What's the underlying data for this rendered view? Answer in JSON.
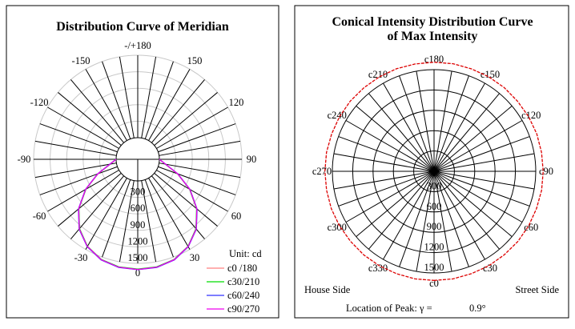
{
  "chart_data": [
    {
      "type": "polar-line",
      "title": "Distribution Curve of  Meridian",
      "unit_label": "Unit: cd",
      "angle_ticks": [
        "-/+180",
        "150",
        "120",
        "90",
        "60",
        "30",
        "0",
        "-30",
        "-60",
        "-90",
        "-120",
        "-150"
      ],
      "angle_tick_values": [
        180,
        150,
        120,
        90,
        60,
        30,
        0,
        -30,
        -60,
        -90,
        -120,
        -150
      ],
      "radial_ticks": [
        300,
        600,
        900,
        1200,
        1500
      ],
      "rlim": [
        0,
        1500
      ],
      "spoke_step_deg": 10,
      "legend_position": "bottom-right",
      "series": [
        {
          "name": "c0 /180",
          "color": "#ff8080",
          "angles": [
            -90,
            -80,
            -70,
            -60,
            -50,
            -40,
            -30,
            -20,
            -10,
            0,
            10,
            20,
            30,
            40,
            50,
            60,
            70,
            80,
            90
          ],
          "values": [
            0,
            120,
            380,
            700,
            1010,
            1260,
            1440,
            1550,
            1600,
            1610,
            1600,
            1550,
            1440,
            1260,
            1010,
            700,
            380,
            120,
            0
          ]
        },
        {
          "name": "c30/210",
          "color": "#00dd00",
          "angles": [
            -90,
            -80,
            -70,
            -60,
            -50,
            -40,
            -30,
            -20,
            -10,
            0,
            10,
            20,
            30,
            40,
            50,
            60,
            70,
            80,
            90
          ],
          "values": [
            0,
            115,
            375,
            695,
            1005,
            1255,
            1435,
            1545,
            1595,
            1605,
            1595,
            1545,
            1435,
            1255,
            1005,
            695,
            375,
            115,
            0
          ]
        },
        {
          "name": "c60/240",
          "color": "#3030ff",
          "angles": [
            -90,
            -80,
            -70,
            -60,
            -50,
            -40,
            -30,
            -20,
            -10,
            0,
            10,
            20,
            30,
            40,
            50,
            60,
            70,
            80,
            90
          ],
          "values": [
            0,
            125,
            385,
            705,
            1015,
            1265,
            1445,
            1555,
            1605,
            1615,
            1605,
            1555,
            1445,
            1265,
            1015,
            705,
            385,
            125,
            0
          ]
        },
        {
          "name": "c90/270",
          "color": "#ee00ee",
          "angles": [
            -90,
            -80,
            -70,
            -60,
            -50,
            -40,
            -30,
            -20,
            -10,
            0,
            10,
            20,
            30,
            40,
            50,
            60,
            70,
            80,
            90
          ],
          "values": [
            0,
            120,
            380,
            700,
            1010,
            1260,
            1440,
            1550,
            1600,
            1612,
            1600,
            1550,
            1440,
            1260,
            1010,
            700,
            380,
            120,
            0
          ]
        }
      ]
    },
    {
      "type": "polar-line",
      "title_line1": "Conical Intensity Distribution Curve",
      "title_line2": "of  Max Intensity",
      "angle_ticks": [
        "c180",
        "c150",
        "c120",
        "c90",
        "c60",
        "c30",
        "c0",
        "c330",
        "c300",
        "c270",
        "c240",
        "c210"
      ],
      "angle_tick_values": [
        180,
        150,
        120,
        90,
        60,
        30,
        0,
        330,
        300,
        270,
        240,
        210
      ],
      "radial_ticks": [
        300,
        600,
        900,
        1200,
        1500
      ],
      "rlim": [
        0,
        1500
      ],
      "spoke_step_deg": 10,
      "left_label": "House Side",
      "right_label": "Street Side",
      "peak_label": "Location of Peak:  γ  =",
      "peak_value": "0.9°",
      "peak_color": "#ff0000",
      "series": [
        {
          "name": "",
          "color": "#dd0000",
          "angles": [
            0,
            10,
            20,
            30,
            40,
            50,
            60,
            70,
            80,
            90,
            100,
            110,
            120,
            130,
            140,
            150,
            160,
            170,
            180,
            190,
            200,
            210,
            220,
            230,
            240,
            250,
            260,
            270,
            280,
            290,
            300,
            310,
            320,
            330,
            340,
            350
          ],
          "values": [
            1610,
            1612,
            1608,
            1611,
            1609,
            1612,
            1610,
            1608,
            1611,
            1610,
            1609,
            1612,
            1610,
            1608,
            1611,
            1610,
            1609,
            1612,
            1610,
            1608,
            1611,
            1610,
            1609,
            1612,
            1610,
            1608,
            1611,
            1610,
            1609,
            1612,
            1610,
            1608,
            1611,
            1610,
            1609,
            1612
          ]
        }
      ]
    }
  ]
}
